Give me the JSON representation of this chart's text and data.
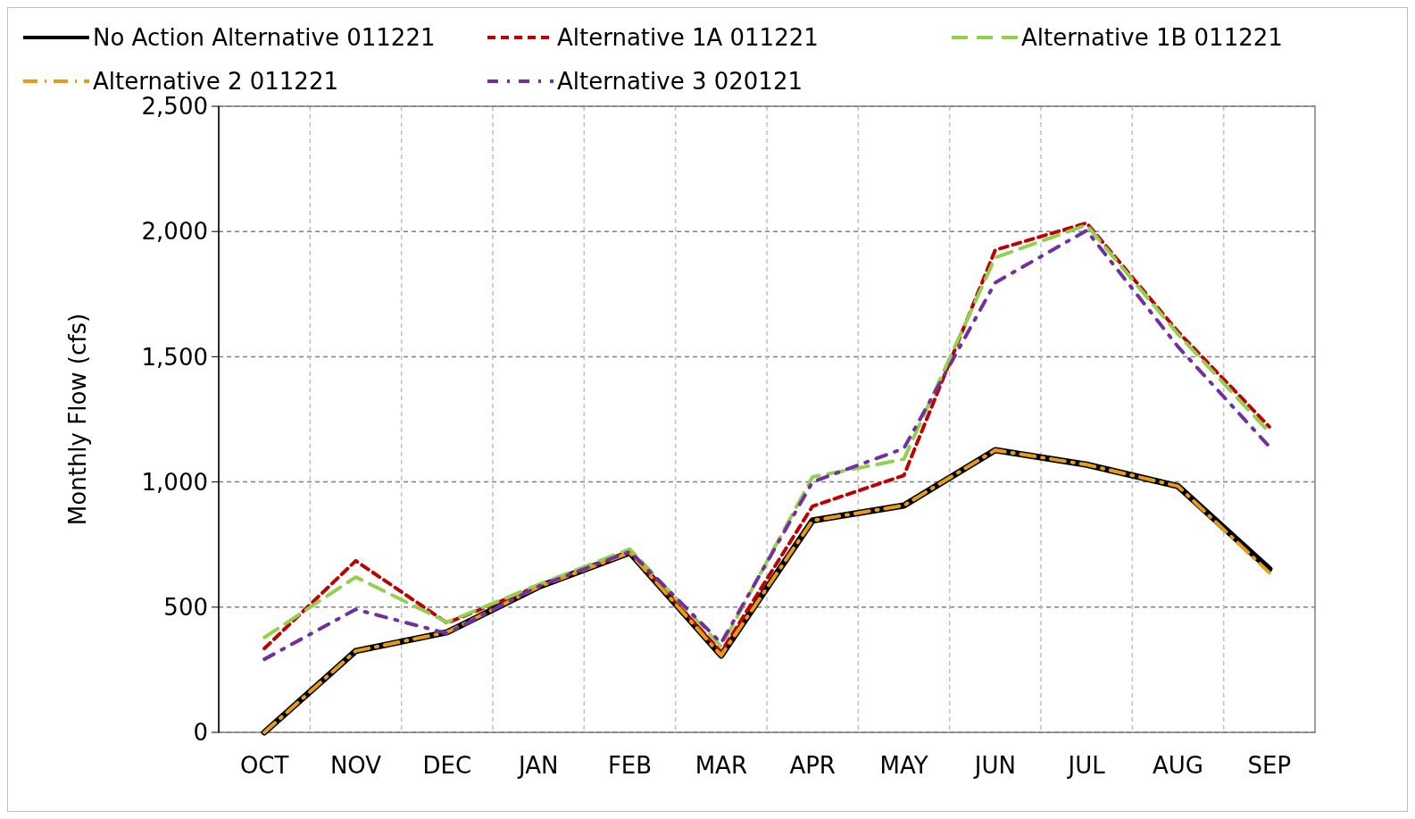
{
  "chart_data": {
    "type": "line",
    "ylabel": "Monthly Flow (cfs)",
    "categories": [
      "OCT",
      "NOV",
      "DEC",
      "JAN",
      "FEB",
      "MAR",
      "APR",
      "MAY",
      "JUN",
      "JUL",
      "AUG",
      "SEP"
    ],
    "ylim": [
      0,
      2500
    ],
    "yticks": [
      {
        "value": 0,
        "label": "0"
      },
      {
        "value": 500,
        "label": "500"
      },
      {
        "value": 1000,
        "label": "1,000"
      },
      {
        "value": 1500,
        "label": "1,500"
      },
      {
        "value": 2000,
        "label": "2,000"
      },
      {
        "value": 2500,
        "label": "2,500"
      }
    ],
    "grid": true,
    "legend": "top",
    "series": [
      {
        "name": "No Action Alternative 011221",
        "color": "#000000",
        "line_style": "solid",
        "values": [
          0,
          325,
          400,
          581,
          718,
          307,
          846,
          906,
          1127,
          1069,
          983,
          652
        ]
      },
      {
        "name": "Alternative 1A 011221",
        "color": "#c00000",
        "line_style": "dashed",
        "values": [
          335,
          685,
          437,
          585,
          720,
          321,
          903,
          1026,
          1926,
          2034,
          1600,
          1220
        ]
      },
      {
        "name": "Alternative 1B 011221",
        "color": "#92d050",
        "line_style": "longdash",
        "values": [
          379,
          620,
          440,
          590,
          732,
          343,
          1020,
          1091,
          1896,
          2026,
          1590,
          1198
        ]
      },
      {
        "name": "Alternative 2 011221",
        "color": "#e69c18",
        "line_style": "longdashdot",
        "values": [
          0,
          325,
          400,
          581,
          718,
          307,
          846,
          906,
          1127,
          1069,
          983,
          638
        ]
      },
      {
        "name": "Alternative 3 020121",
        "color": "#7030a0",
        "line_style": "dashdot",
        "values": [
          292,
          491,
          395,
          583,
          722,
          357,
          1000,
          1134,
          1796,
          2004,
          1540,
          1141
        ]
      }
    ]
  }
}
